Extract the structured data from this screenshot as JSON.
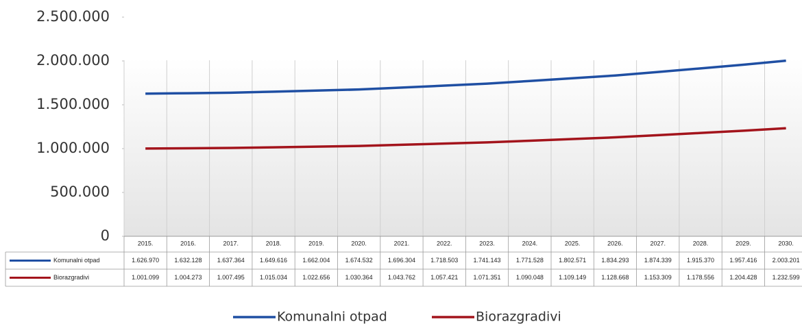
{
  "chart_data": {
    "type": "line",
    "categories": [
      "2015.",
      "2016.",
      "2017.",
      "2018.",
      "2019.",
      "2020.",
      "2021.",
      "2022.",
      "2023.",
      "2024.",
      "2025.",
      "2026.",
      "2027.",
      "2028.",
      "2029.",
      "2030."
    ],
    "series": [
      {
        "name": "Komunalni otpad",
        "color": "#1f4fa3",
        "values": [
          1626970,
          1632128,
          1637364,
          1649616,
          1662004,
          1674532,
          1696304,
          1718503,
          1741143,
          1771528,
          1802571,
          1834293,
          1874339,
          1915370,
          1957416,
          2003201
        ],
        "value_labels": [
          "1.626.970",
          "1.632.128",
          "1.637.364",
          "1.649.616",
          "1.662.004",
          "1.674.532",
          "1.696.304",
          "1.718.503",
          "1.741.143",
          "1.771.528",
          "1.802.571",
          "1.834.293",
          "1.874.339",
          "1.915.370",
          "1.957.416",
          "2.003.201"
        ]
      },
      {
        "name": "Biorazgradivi",
        "color": "#a3141c",
        "values": [
          1001099,
          1004273,
          1007495,
          1015034,
          1022656,
          1030364,
          1043762,
          1057421,
          1071351,
          1090048,
          1109149,
          1128668,
          1153309,
          1178556,
          1204428,
          1232599
        ],
        "value_labels": [
          "1.001.099",
          "1.004.273",
          "1.007.495",
          "1.015.034",
          "1.022.656",
          "1.030.364",
          "1.043.762",
          "1.057.421",
          "1.071.351",
          "1.090.048",
          "1.109.149",
          "1.128.668",
          "1.153.309",
          "1.178.556",
          "1.204.428",
          "1.232.599"
        ]
      }
    ],
    "ylim": [
      0,
      2500000
    ],
    "yticks": [
      0,
      {
        "value": 500000,
        "label": "500.000"
      },
      {
        "value": 1000000,
        "label": "1.000.000"
      },
      {
        "value": 1500000,
        "label": "1.500.000"
      },
      {
        "value": 2000000,
        "label": "2.000.000"
      },
      {
        "value": 2500000,
        "label": "2.500.000"
      }
    ],
    "legend": "bottom"
  }
}
